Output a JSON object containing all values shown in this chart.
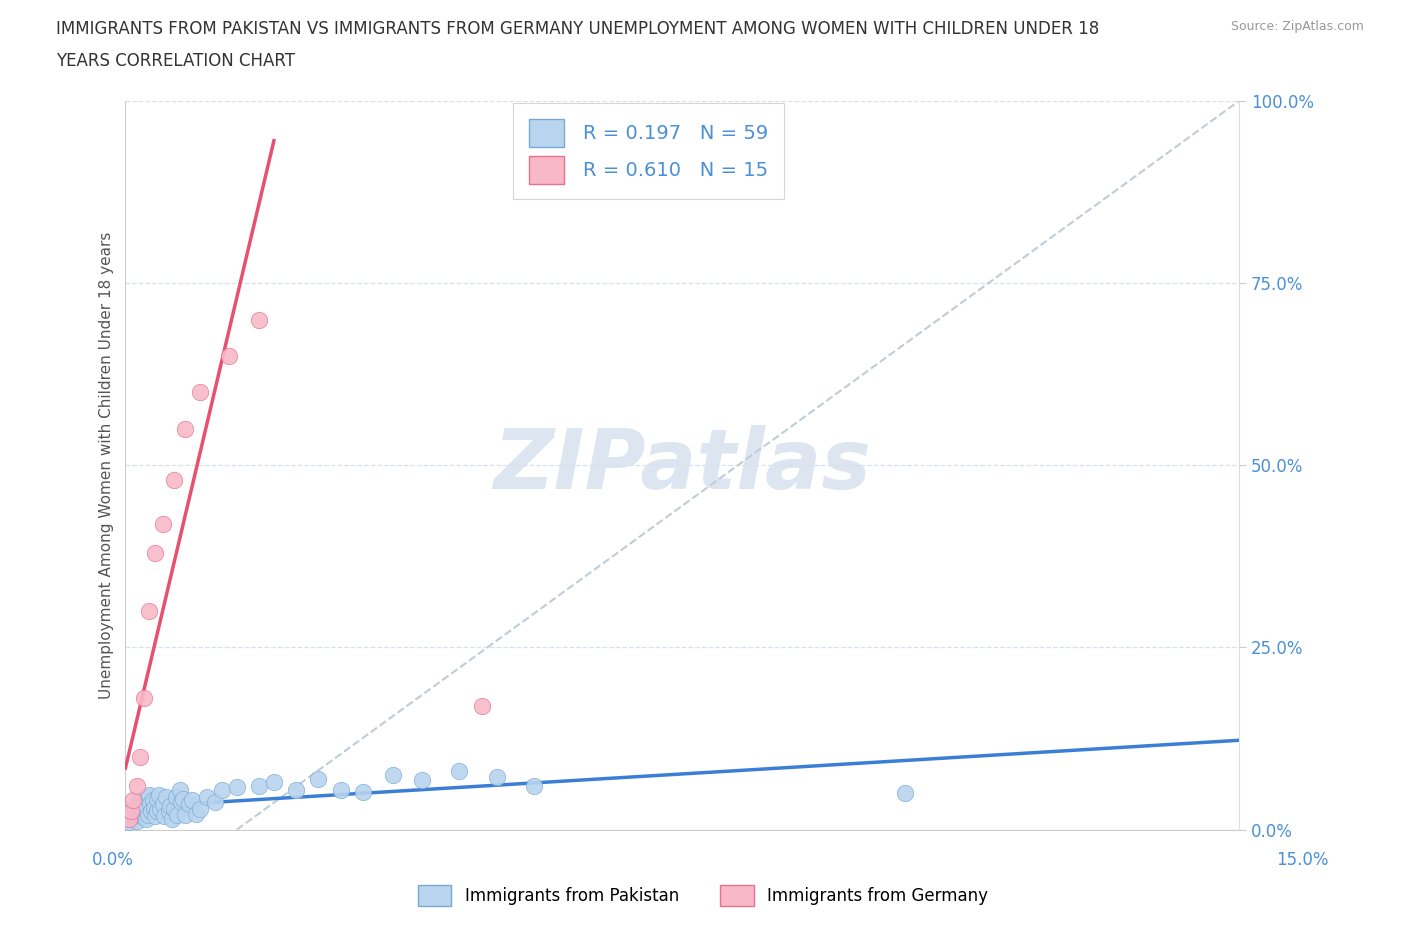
{
  "title_line1": "IMMIGRANTS FROM PAKISTAN VS IMMIGRANTS FROM GERMANY UNEMPLOYMENT AMONG WOMEN WITH CHILDREN UNDER 18",
  "title_line2": "YEARS CORRELATION CHART",
  "source": "Source: ZipAtlas.com",
  "ylabel": "Unemployment Among Women with Children Under 18 years",
  "xtick_left": "0.0%",
  "xtick_right": "15.0%",
  "xlim": [
    0.0,
    15.0
  ],
  "ylim": [
    0.0,
    100.0
  ],
  "yticks": [
    0,
    25,
    50,
    75,
    100
  ],
  "ytick_labels": [
    "0.0%",
    "25.0%",
    "50.0%",
    "75.0%",
    "100.0%"
  ],
  "pakistan_R": 0.197,
  "pakistan_N": 59,
  "germany_R": 0.61,
  "germany_N": 15,
  "pakistan_marker_color": "#b8d4ee",
  "pakistan_edge_color": "#7aaad4",
  "germany_marker_color": "#f8b8c8",
  "germany_edge_color": "#e87090",
  "pakistan_line_color": "#3a7fd5",
  "germany_line_color": "#e85070",
  "diagonal_color": "#c0ccd8",
  "watermark_text": "ZIPatlas",
  "watermark_color": "#dde5f0",
  "background_color": "#ffffff",
  "grid_color": "#d8e0ea",
  "title_color": "#333333",
  "axis_label_color": "#4a90d9",
  "ylabel_color": "#555555",
  "source_color": "#999999",
  "legend_edge_color": "#cccccc",
  "pakistan_x": [
    0.05,
    0.08,
    0.1,
    0.12,
    0.13,
    0.15,
    0.16,
    0.18,
    0.19,
    0.2,
    0.22,
    0.23,
    0.25,
    0.27,
    0.28,
    0.3,
    0.32,
    0.33,
    0.35,
    0.37,
    0.38,
    0.4,
    0.42,
    0.43,
    0.45,
    0.47,
    0.5,
    0.52,
    0.55,
    0.58,
    0.6,
    0.63,
    0.65,
    0.68,
    0.7,
    0.73,
    0.75,
    0.78,
    0.8,
    0.85,
    0.9,
    0.95,
    1.0,
    1.1,
    1.2,
    1.3,
    1.5,
    1.8,
    2.0,
    2.3,
    2.6,
    2.9,
    3.2,
    3.6,
    4.0,
    4.5,
    5.0,
    5.5,
    10.5
  ],
  "pakistan_y": [
    1.0,
    1.5,
    2.0,
    1.8,
    3.0,
    2.2,
    1.2,
    4.0,
    2.8,
    3.2,
    1.8,
    2.5,
    3.5,
    1.5,
    4.5,
    2.0,
    4.8,
    3.5,
    2.5,
    4.0,
    3.0,
    1.8,
    2.5,
    4.2,
    4.8,
    2.8,
    3.5,
    1.8,
    4.5,
    2.5,
    3.2,
    1.5,
    2.8,
    4.5,
    2.0,
    5.5,
    3.8,
    4.2,
    2.0,
    3.5,
    4.0,
    2.2,
    2.8,
    4.5,
    3.8,
    5.5,
    5.8,
    6.0,
    6.5,
    5.5,
    7.0,
    5.5,
    5.2,
    7.5,
    6.8,
    8.0,
    7.2,
    6.0,
    5.0
  ],
  "germany_x": [
    0.05,
    0.08,
    0.1,
    0.15,
    0.2,
    0.25,
    0.32,
    0.4,
    0.5,
    0.65,
    0.8,
    1.0,
    1.4,
    1.8,
    4.8
  ],
  "germany_y": [
    1.5,
    2.5,
    4.0,
    6.0,
    10.0,
    18.0,
    30.0,
    38.0,
    42.0,
    48.0,
    55.0,
    60.0,
    65.0,
    70.0,
    17.0
  ]
}
